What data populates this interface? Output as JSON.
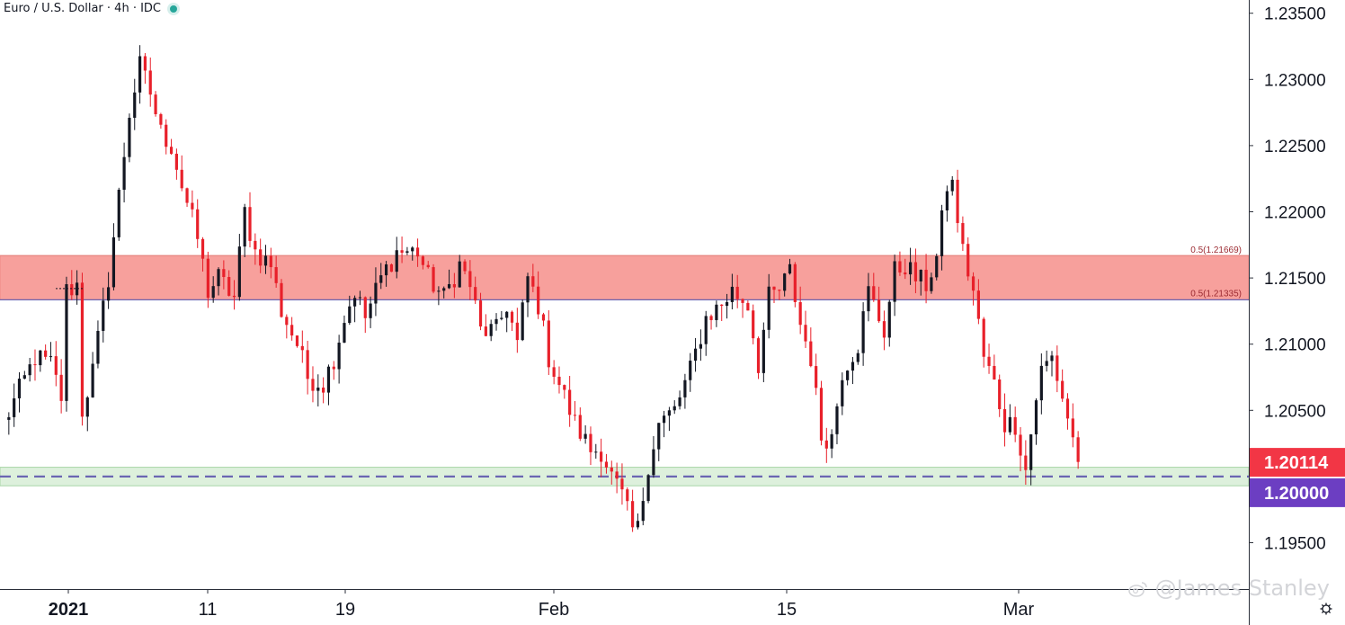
{
  "header": {
    "title": "Euro / U.S. Dollar · 4h · IDC",
    "status_dot_color": "#26a69a"
  },
  "watermark": "@James Stanley",
  "watermark_icon": "weibo-logo-icon",
  "settings_icon": "gear-icon",
  "colors": {
    "up": "#131722",
    "down": "#e8202a",
    "resistance_zone": "#f7a09c",
    "support_zone": "#ddf0dc",
    "level_line": "#6b66b2",
    "price_tag_current": "#f23645",
    "price_tag_level": "#6c3ec2"
  },
  "chart_data": {
    "type": "candlestick",
    "title": "Euro / U.S. Dollar · 4h · IDC",
    "ylim": [
      1.1915,
      1.236
    ],
    "y_ticks": [
      "1.23500",
      "1.23000",
      "1.22500",
      "1.22000",
      "1.21500",
      "1.21000",
      "1.20500",
      "1.19500"
    ],
    "x_tick_labels": [
      {
        "label": "2021",
        "bold": true,
        "index": 8
      },
      {
        "label": "11",
        "bold": false,
        "index": 38
      },
      {
        "label": "19",
        "bold": false,
        "index": 64
      },
      {
        "label": "Feb",
        "bold": false,
        "index": 102
      },
      {
        "label": "15",
        "bold": false,
        "index": 145
      },
      {
        "label": "Mar",
        "bold": false,
        "index": 188
      }
    ],
    "candle_count": 205,
    "key_points": [
      {
        "i": 0,
        "p": 1.204
      },
      {
        "i": 6,
        "p": 1.209
      },
      {
        "i": 9,
        "p": 1.2085
      },
      {
        "i": 11,
        "p": 1.206
      },
      {
        "i": 12,
        "p": 1.214
      },
      {
        "i": 14,
        "p": 1.2145
      },
      {
        "i": 15,
        "p": 1.205
      },
      {
        "i": 17,
        "p": 1.208
      },
      {
        "i": 20,
        "p": 1.215
      },
      {
        "i": 24,
        "p": 1.2275
      },
      {
        "i": 26,
        "p": 1.231
      },
      {
        "i": 28,
        "p": 1.229
      },
      {
        "i": 30,
        "p": 1.226
      },
      {
        "i": 32,
        "p": 1.225
      },
      {
        "i": 34,
        "p": 1.222
      },
      {
        "i": 37,
        "p": 1.218
      },
      {
        "i": 39,
        "p": 1.214
      },
      {
        "i": 41,
        "p": 1.215
      },
      {
        "i": 44,
        "p": 1.2135
      },
      {
        "i": 46,
        "p": 1.22
      },
      {
        "i": 48,
        "p": 1.217
      },
      {
        "i": 51,
        "p": 1.216
      },
      {
        "i": 53,
        "p": 1.2125
      },
      {
        "i": 56,
        "p": 1.21
      },
      {
        "i": 58,
        "p": 1.2075
      },
      {
        "i": 61,
        "p": 1.207
      },
      {
        "i": 63,
        "p": 1.209
      },
      {
        "i": 65,
        "p": 1.212
      },
      {
        "i": 67,
        "p": 1.214
      },
      {
        "i": 69,
        "p": 1.212
      },
      {
        "i": 72,
        "p": 1.215
      },
      {
        "i": 75,
        "p": 1.217
      },
      {
        "i": 79,
        "p": 1.217
      },
      {
        "i": 81,
        "p": 1.215
      },
      {
        "i": 84,
        "p": 1.2135
      },
      {
        "i": 87,
        "p": 1.216
      },
      {
        "i": 89,
        "p": 1.2145
      },
      {
        "i": 91,
        "p": 1.211
      },
      {
        "i": 94,
        "p": 1.211
      },
      {
        "i": 96,
        "p": 1.213
      },
      {
        "i": 98,
        "p": 1.21
      },
      {
        "i": 100,
        "p": 1.215
      },
      {
        "i": 102,
        "p": 1.213
      },
      {
        "i": 104,
        "p": 1.209
      },
      {
        "i": 106,
        "p": 1.207
      },
      {
        "i": 109,
        "p": 1.204
      },
      {
        "i": 112,
        "p": 1.202
      },
      {
        "i": 114,
        "p": 1.202
      },
      {
        "i": 116,
        "p": 1.2
      },
      {
        "i": 118,
        "p": 1.1985
      },
      {
        "i": 120,
        "p": 1.196
      },
      {
        "i": 121,
        "p": 1.196
      },
      {
        "i": 123,
        "p": 1.201
      },
      {
        "i": 125,
        "p": 1.204
      },
      {
        "i": 128,
        "p": 1.205
      },
      {
        "i": 131,
        "p": 1.208
      },
      {
        "i": 134,
        "p": 1.212
      },
      {
        "i": 137,
        "p": 1.213
      },
      {
        "i": 139,
        "p": 1.214
      },
      {
        "i": 142,
        "p": 1.213
      },
      {
        "i": 144,
        "p": 1.2085
      },
      {
        "i": 146,
        "p": 1.2135
      },
      {
        "i": 148,
        "p": 1.214
      },
      {
        "i": 150,
        "p": 1.2155
      },
      {
        "i": 152,
        "p": 1.2115
      },
      {
        "i": 154,
        "p": 1.209
      },
      {
        "i": 156,
        "p": 1.203
      },
      {
        "i": 158,
        "p": 1.203
      },
      {
        "i": 160,
        "p": 1.208
      },
      {
        "i": 163,
        "p": 1.21
      },
      {
        "i": 165,
        "p": 1.214
      },
      {
        "i": 168,
        "p": 1.211
      },
      {
        "i": 170,
        "p": 1.2155
      },
      {
        "i": 172,
        "p": 1.216
      },
      {
        "i": 174,
        "p": 1.215
      },
      {
        "i": 176,
        "p": 1.2145
      },
      {
        "i": 178,
        "p": 1.2165
      },
      {
        "i": 180,
        "p": 1.222
      },
      {
        "i": 181,
        "p": 1.222
      },
      {
        "i": 183,
        "p": 1.217
      },
      {
        "i": 185,
        "p": 1.214
      },
      {
        "i": 187,
        "p": 1.209
      },
      {
        "i": 189,
        "p": 1.207
      },
      {
        "i": 191,
        "p": 1.204
      },
      {
        "i": 193,
        "p": 1.204
      },
      {
        "i": 195,
        "p": 1.2005
      },
      {
        "i": 197,
        "p": 1.206
      },
      {
        "i": 198,
        "p": 1.208
      },
      {
        "i": 200,
        "p": 1.209
      },
      {
        "i": 201,
        "p": 1.2075
      },
      {
        "i": 203,
        "p": 1.2045
      },
      {
        "i": 205,
        "p": 1.2011
      }
    ],
    "zones": [
      {
        "name": "resistance",
        "from": 1.21335,
        "to": 1.21669,
        "labels": [
          "0.5(1.21669)",
          "0.5(1.21335)"
        ]
      },
      {
        "name": "support",
        "from": 1.1993,
        "to": 1.2007
      }
    ],
    "horizontal_line": {
      "price": 1.2,
      "style": "dashed"
    },
    "price_tags": [
      {
        "label": "1.20114",
        "price": 1.20114,
        "kind": "current"
      },
      {
        "label": "1.20000",
        "price": 1.2,
        "kind": "level"
      }
    ],
    "previous_close_marker": {
      "price": 1.2142
    }
  }
}
